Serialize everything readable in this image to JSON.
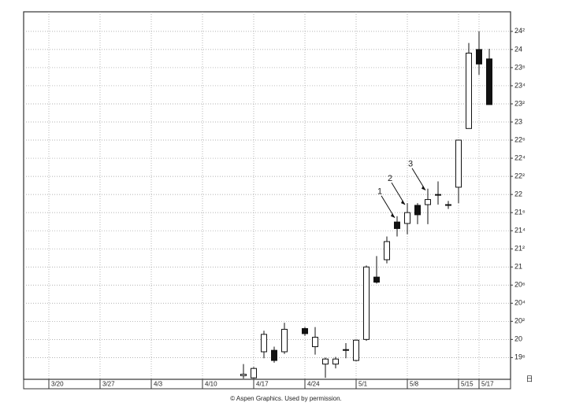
{
  "chart_data": {
    "type": "candlestick",
    "categories": [
      "3/20",
      null,
      null,
      null,
      null,
      "3/27",
      null,
      null,
      null,
      null,
      "4/3",
      null,
      null,
      null,
      null,
      "4/10",
      null,
      null,
      null,
      null,
      "4/17",
      null,
      null,
      null,
      null,
      "4/24",
      null,
      null,
      null,
      null,
      "5/1",
      null,
      null,
      null,
      null,
      "5/8",
      null,
      null,
      null,
      null,
      "5/15",
      null,
      "5/17",
      null
    ],
    "open": [
      null,
      null,
      null,
      null,
      null,
      null,
      null,
      null,
      null,
      null,
      null,
      null,
      null,
      null,
      null,
      null,
      null,
      null,
      null,
      19.5,
      19.47,
      19.83,
      19.85,
      19.83,
      null,
      20.15,
      19.9,
      19.66,
      19.66,
      19.85,
      19.71,
      20.0,
      20.86,
      21.1,
      21.62,
      21.6,
      21.85,
      21.86,
      21.99,
      21.86,
      22.1,
      22.91,
      24.0,
      23.87
    ],
    "high": [
      null,
      null,
      null,
      null,
      null,
      null,
      null,
      null,
      null,
      null,
      null,
      null,
      null,
      null,
      null,
      null,
      null,
      null,
      null,
      19.66,
      19.62,
      20.12,
      19.9,
      20.23,
      null,
      20.17,
      20.17,
      19.75,
      19.76,
      19.95,
      20.0,
      21.02,
      21.15,
      21.42,
      21.7,
      21.88,
      21.88,
      22.08,
      22.18,
      21.91,
      22.75,
      24.09,
      24.25,
      24.01
    ],
    "low": [
      null,
      null,
      null,
      null,
      null,
      null,
      null,
      null,
      null,
      null,
      null,
      null,
      null,
      null,
      null,
      null,
      null,
      null,
      null,
      19.46,
      19.46,
      19.74,
      19.68,
      19.8,
      null,
      20.05,
      19.79,
      19.47,
      19.6,
      19.74,
      19.7,
      19.98,
      20.77,
      21.05,
      21.42,
      21.45,
      21.59,
      21.59,
      21.86,
      21.8,
      21.88,
      22.91,
      23.65,
      23.24
    ],
    "close": [
      null,
      null,
      null,
      null,
      null,
      null,
      null,
      null,
      null,
      null,
      null,
      null,
      null,
      null,
      null,
      null,
      null,
      null,
      null,
      19.52,
      19.6,
      20.07,
      19.71,
      20.14,
      null,
      20.08,
      20.03,
      19.73,
      19.73,
      19.86,
      19.99,
      21.0,
      20.79,
      21.35,
      21.53,
      21.75,
      21.72,
      21.93,
      22.0,
      21.86,
      22.75,
      23.95,
      23.8,
      23.24
    ],
    "up_color": "#ffffff",
    "down_color": "#111111",
    "ylim": [
      19.45,
      24.52
    ],
    "yticks": [
      {
        "value": 24.25,
        "label": "24²"
      },
      24,
      {
        "value": 23.75,
        "label": "23⁶"
      },
      {
        "value": 23.5,
        "label": "23⁴"
      },
      {
        "value": 23.25,
        "label": "23²"
      },
      23,
      {
        "value": 22.75,
        "label": "22⁶"
      },
      {
        "value": 22.5,
        "label": "22⁴"
      },
      {
        "value": 22.25,
        "label": "22²"
      },
      22,
      {
        "value": 21.75,
        "label": "21⁶"
      },
      {
        "value": 21.5,
        "label": "21⁴"
      },
      {
        "value": 21.25,
        "label": "21²"
      },
      21,
      {
        "value": 20.75,
        "label": "20⁶"
      },
      {
        "value": 20.5,
        "label": "20⁴"
      },
      {
        "value": 20.25,
        "label": "20²"
      },
      20,
      {
        "value": 19.75,
        "label": "19⁶"
      }
    ],
    "grid": true,
    "annotations": [
      "1",
      "2",
      "3"
    ],
    "corner_label": "日",
    "source": "© Aspen Graphics. Used by permission."
  }
}
